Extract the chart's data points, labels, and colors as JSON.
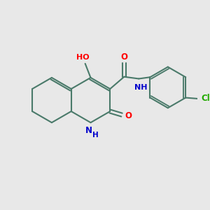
{
  "bg_color": "#e8e8e8",
  "bond_color": "#4a7a6a",
  "bond_width": 1.5,
  "atom_colors": {
    "O": "#ff0000",
    "N": "#0000cc",
    "Cl": "#22aa00",
    "H": "#4a7a6a",
    "C": "#4a7a6a"
  },
  "font_size_atom": 8.5
}
